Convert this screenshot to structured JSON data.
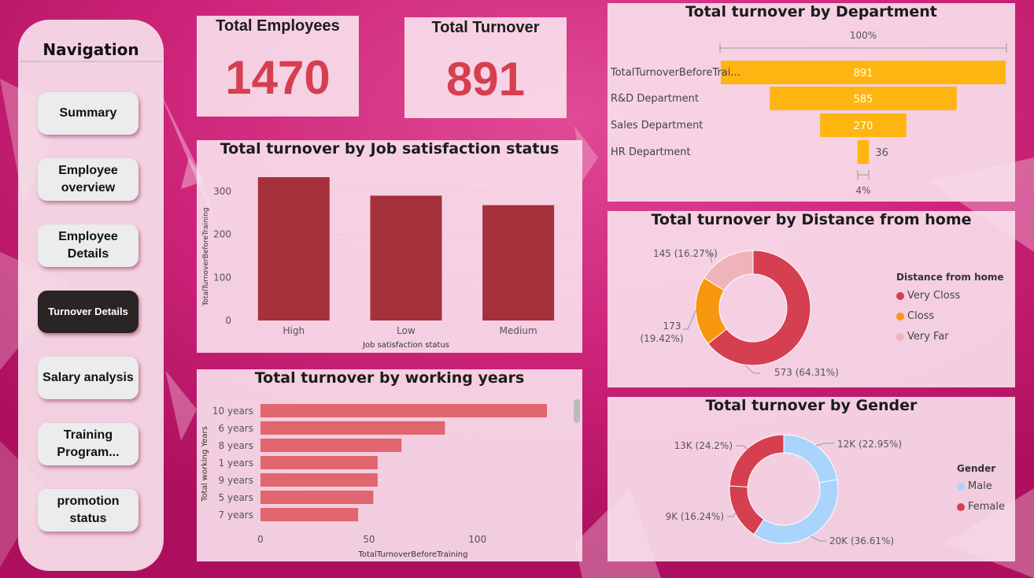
{
  "colors": {
    "background": "#c21a6e",
    "kpi_value": "#d63f4f",
    "dept_bar": "#ffb511",
    "job_bar": "#a4313b",
    "years_bar": "#e0666f",
    "very_closs": "#d63f4f",
    "closs": "#f7960f",
    "very_far": "#efb4b9",
    "male": "#a9d4fb",
    "female": "#d63f4f"
  },
  "navigation": {
    "title": "Navigation",
    "items": [
      {
        "label": "Summary"
      },
      {
        "label": "Employee overview"
      },
      {
        "label": "Employee Details"
      },
      {
        "label": "Turnover Details"
      },
      {
        "label": "Salary analysis"
      },
      {
        "label": "Training Program..."
      },
      {
        "label": "promotion status"
      }
    ],
    "active_index": 3
  },
  "kpis": {
    "employees": {
      "label": "Total Employees",
      "value": "1470"
    },
    "turnover": {
      "label": "Total Turnover",
      "value": "891"
    }
  },
  "chart_data": [
    {
      "id": "job",
      "type": "bar",
      "title": "Total turnover by Job satisfaction status",
      "xlabel": "Job satisfaction status",
      "ylabel": "TotalTurnoverBeforeTraining",
      "categories": [
        "High",
        "Low",
        "Medium"
      ],
      "values": [
        333,
        290,
        268
      ],
      "yticks": [
        0,
        100,
        200,
        300
      ],
      "ylim": [
        0,
        333
      ]
    },
    {
      "id": "years",
      "type": "bar",
      "orientation": "horizontal",
      "title": "Total turnover by working years",
      "xlabel": "TotalTurnoverBeforeTraining",
      "ylabel": "Total working Years",
      "categories": [
        "10 years",
        "6 years",
        "8 years",
        "1 years",
        "9 years",
        "5 years",
        "7 years"
      ],
      "values": [
        132,
        85,
        65,
        54,
        54,
        52,
        45
      ],
      "xticks": [
        0,
        50,
        100
      ],
      "xlim": [
        0,
        132
      ]
    },
    {
      "id": "dept",
      "type": "funnel",
      "title": "Total turnover by Department",
      "top_percent_label": "100%",
      "bottom_percent_label": "4%",
      "categories": [
        "TotalTurnoverBeforeTrai...",
        "R&D Department",
        "Sales Department",
        "HR Department"
      ],
      "values": [
        891,
        585,
        270,
        36
      ],
      "value_labels": [
        "891",
        "585",
        "270",
        "36"
      ]
    },
    {
      "id": "distance",
      "type": "pie",
      "variant": "donut",
      "title": "Total turnover by Distance from home",
      "legend_title": "Distance from home",
      "legend_position": "right",
      "slices": [
        {
          "name": "Very Closs",
          "value": 573,
          "label": "573 (64.31%)"
        },
        {
          "name": "Closs",
          "value": 173,
          "label_line1": "173",
          "label_line2": "(19.42%)"
        },
        {
          "name": "Very Far",
          "value": 145,
          "label": "145 (16.27%)"
        }
      ]
    },
    {
      "id": "gender",
      "type": "pie",
      "variant": "donut",
      "title": "Total turnover by Gender",
      "legend_title": "Gender",
      "legend_position": "right",
      "legend": [
        {
          "name": "Male"
        },
        {
          "name": "Female"
        }
      ],
      "slices": [
        {
          "gender": "Male",
          "value": 12000,
          "label": "12K (22.95%)"
        },
        {
          "gender": "Male",
          "value": 20000,
          "label": "20K (36.61%)"
        },
        {
          "gender": "Female",
          "value": 9000,
          "label": "9K (16.24%)"
        },
        {
          "gender": "Female",
          "value": 13000,
          "label": "13K (24.2%)"
        }
      ]
    }
  ]
}
